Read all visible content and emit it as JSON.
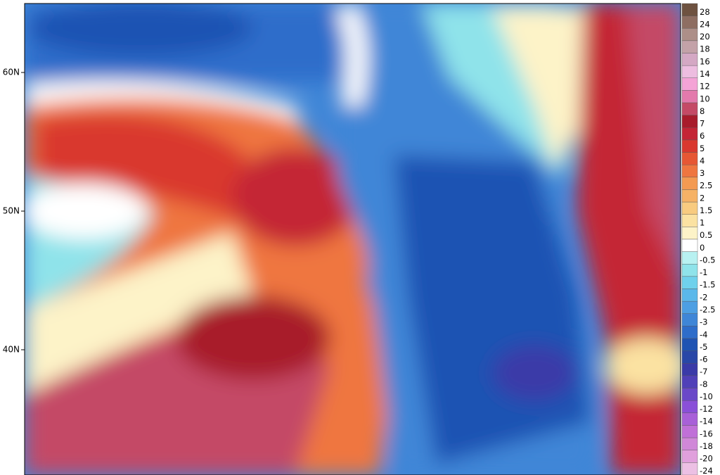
{
  "map": {
    "latitude_labels": [
      "60N",
      "50N",
      "40N"
    ],
    "legend": [
      {
        "label": "28",
        "color": "#6e5240"
      },
      {
        "label": "24",
        "color": "#8e6e62"
      },
      {
        "label": "20",
        "color": "#ad8f88"
      },
      {
        "label": "18",
        "color": "#c3a2a8"
      },
      {
        "label": "16",
        "color": "#d4a8c4"
      },
      {
        "label": "14",
        "color": "#edbde0"
      },
      {
        "label": "12",
        "color": "#f4a3d6"
      },
      {
        "label": "10",
        "color": "#e37aac"
      },
      {
        "label": "8",
        "color": "#c44a66"
      },
      {
        "label": "7",
        "color": "#a81c2c"
      },
      {
        "label": "6",
        "color": "#c42536"
      },
      {
        "label": "5",
        "color": "#d9382f"
      },
      {
        "label": "4",
        "color": "#e65734"
      },
      {
        "label": "3",
        "color": "#ef7640"
      },
      {
        "label": "2.5",
        "color": "#f39a52"
      },
      {
        "label": "2",
        "color": "#f6b266"
      },
      {
        "label": "1.5",
        "color": "#f8cb80"
      },
      {
        "label": "1",
        "color": "#fbe2a2"
      },
      {
        "label": "0.5",
        "color": "#fdf3c8"
      },
      {
        "label": "0",
        "color": "#ffffff"
      },
      {
        "label": "-0.5",
        "color": "#b8f1f1"
      },
      {
        "label": "-1",
        "color": "#8fe3ea"
      },
      {
        "label": "-1.5",
        "color": "#6fd1ec"
      },
      {
        "label": "-2",
        "color": "#5bb8ea"
      },
      {
        "label": "-2.5",
        "color": "#4d9fe3"
      },
      {
        "label": "-3",
        "color": "#3f86d7"
      },
      {
        "label": "-4",
        "color": "#2e6dca"
      },
      {
        "label": "-5",
        "color": "#1e53b3"
      },
      {
        "label": "-6",
        "color": "#2947a7"
      },
      {
        "label": "-7",
        "color": "#3a3aa8"
      },
      {
        "label": "-8",
        "color": "#5040b8"
      },
      {
        "label": "-10",
        "color": "#6a48c8"
      },
      {
        "label": "-12",
        "color": "#8a50d8"
      },
      {
        "label": "-14",
        "color": "#a860d8"
      },
      {
        "label": "-16",
        "color": "#c070d8"
      },
      {
        "label": "-18",
        "color": "#d088d8"
      },
      {
        "label": "-20",
        "color": "#e0a0dc"
      },
      {
        "label": "-24",
        "color": "#ecc0e4"
      }
    ]
  }
}
